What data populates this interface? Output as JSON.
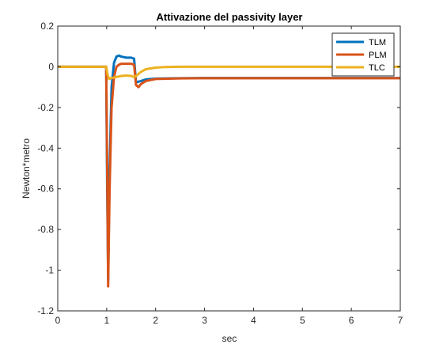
{
  "chart_data": {
    "type": "line",
    "title": "Attivazione del passivity layer",
    "xlabel": "sec",
    "ylabel": "Newton*metro",
    "xlim": [
      0,
      7
    ],
    "ylim": [
      -1.2,
      0.2
    ],
    "xticks": [
      0,
      1,
      2,
      3,
      4,
      5,
      6,
      7
    ],
    "yticks": [
      0.2,
      0,
      -0.2,
      -0.4,
      -0.6,
      -0.8,
      -1,
      -1.2
    ],
    "ytick_labels": [
      "0.2",
      "0",
      "-0.2",
      "-0.4",
      "-0.6",
      "-0.8",
      "-1",
      "-1.2"
    ],
    "grid": false,
    "legend_position": "top-right",
    "series": [
      {
        "name": "TLM",
        "color": "#0072BD",
        "x": [
          0,
          0.99,
          1.01,
          1.03,
          1.06,
          1.1,
          1.15,
          1.2,
          1.25,
          1.3,
          1.4,
          1.5,
          1.56,
          1.6,
          1.62,
          1.7,
          1.8,
          2.0,
          2.5,
          3,
          7
        ],
        "y": [
          0,
          0,
          -0.6,
          -1.05,
          -0.5,
          -0.1,
          0.02,
          0.05,
          0.055,
          0.05,
          0.045,
          0.045,
          0.04,
          -0.08,
          -0.075,
          -0.07,
          -0.062,
          -0.058,
          -0.056,
          -0.055,
          -0.055
        ]
      },
      {
        "name": "PLM",
        "color": "#D95319",
        "x": [
          0,
          0.99,
          1.01,
          1.03,
          1.06,
          1.1,
          1.15,
          1.2,
          1.25,
          1.3,
          1.4,
          1.5,
          1.56,
          1.6,
          1.65,
          1.7,
          1.8,
          2.0,
          2.5,
          3,
          7
        ],
        "y": [
          0,
          0,
          -0.5,
          -1.08,
          -0.6,
          -0.2,
          -0.05,
          0.0,
          0.01,
          0.015,
          0.015,
          0.015,
          0.01,
          -0.09,
          -0.1,
          -0.085,
          -0.07,
          -0.06,
          -0.057,
          -0.056,
          -0.056
        ]
      },
      {
        "name": "TLC",
        "color": "#EDB120",
        "x": [
          0,
          0.99,
          1.02,
          1.05,
          1.1,
          1.2,
          1.3,
          1.4,
          1.5,
          1.56,
          1.6,
          1.7,
          1.8,
          2.0,
          2.2,
          2.5,
          3,
          7
        ],
        "y": [
          0,
          0,
          -0.04,
          -0.06,
          -0.055,
          -0.05,
          -0.045,
          -0.043,
          -0.045,
          -0.05,
          -0.045,
          -0.025,
          -0.012,
          -0.004,
          -0.001,
          0,
          0,
          0
        ]
      }
    ]
  }
}
